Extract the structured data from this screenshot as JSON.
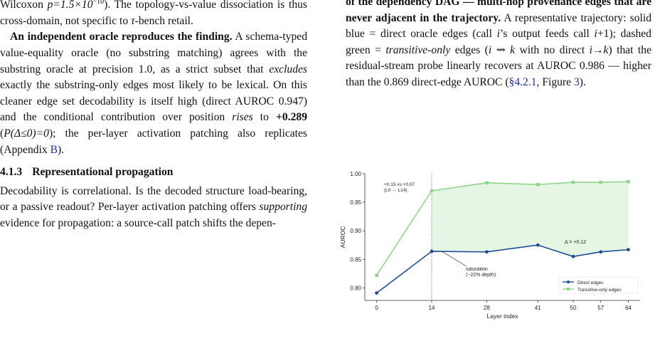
{
  "left": {
    "p0": {
      "t1": "Wilcoxon ",
      "math": "p=1.5×10",
      "exp": "−10",
      "t2": "). The topology-vs-value dissociation is thus cross-domain, not specific to ",
      "tau": "τ",
      "t3": "-bench retail."
    },
    "p1": {
      "lead": "An independent oracle reproduces the finding.",
      "t1": " A schema-typed value-equality oracle (no substring matching) agrees with the substring oracle at precision 1.0, as a strict subset that ",
      "em1": "excludes",
      "t2": " exactly the substring-only edges most likely to be lexical. On this cleaner edge set decodability is itself high (direct AUROC 0.947) and the conditional contribution over position ",
      "em2": "rises",
      "t3": " to ",
      "bold": "+0.289",
      "t4": " (",
      "math": "P(Δ≤0)=0",
      "t5": "); the per-layer activation patching also replicates (Appendix ",
      "ref": "B",
      "t6": ")."
    },
    "section": {
      "num": "4.1.3",
      "title": "Representational propagation"
    },
    "p2": {
      "t1": "Decodability is correlational. Is the decoded structure load-bearing, or a passive readout? Per-layer activation patching offers ",
      "em": "supporting",
      "t2": " evidence for propagation: a source-call patch shifts the depen-"
    }
  },
  "right": {
    "cap": {
      "b1": "of the dependency DAG — multi-hop provenance edges that are never adjacent in the trajectory.",
      "t1": " A representative trajectory: solid blue = direct oracle edges (call ",
      "i1": "i",
      "t2": "’s output feeds call ",
      "i2": "i",
      "t3": "+1); dashed green = ",
      "em": "transitive-only",
      "t4": " edges (",
      "math": "i ⇝ k",
      "t5": " with no direct ",
      "math2": "i→k",
      "t6": ") that the residual-stream probe linearly recovers at AUROC 0.986 — higher than the 0.869 direct-edge AUROC (",
      "ref1": "§4.2.1",
      "t7": ", Figure ",
      "ref2": "3",
      "t8": ")."
    }
  },
  "chart_data": {
    "type": "line",
    "x": [
      0,
      14,
      28,
      41,
      50,
      57,
      64
    ],
    "xticks": [
      "0",
      "14",
      "28",
      "41",
      "50",
      "57",
      "64"
    ],
    "xlim": [
      -3,
      67
    ],
    "ylim": [
      0.778,
      1.0
    ],
    "yticks": [
      "0.80",
      "0.85",
      "0.90",
      "0.95",
      "1.00"
    ],
    "ytick_values": [
      0.8,
      0.85,
      0.9,
      0.95,
      1.0
    ],
    "xlabel": "Layer index",
    "ylabel": "AUROC",
    "grid": false,
    "legend_position": "lower-right",
    "series": [
      {
        "name": "Direct edges",
        "color": "#1f4e96",
        "values": [
          0.791,
          0.864,
          0.863,
          0.875,
          0.855,
          0.863,
          0.867
        ]
      },
      {
        "name": "Transitive-only edges",
        "color": "#8fd68c",
        "values": [
          0.822,
          0.97,
          0.984,
          0.981,
          0.985,
          0.985,
          0.986
        ]
      }
    ],
    "fill_between": {
      "from": 14,
      "color": "#e6f6e4"
    },
    "vline_x": 14,
    "annotations": {
      "top_left": "+0.15 vs +0.07",
      "top_left_sub": "(L0 → L14)",
      "delta": "Δ = +0.12",
      "saturation": "saturation",
      "saturation_sub": "(~22% depth)"
    }
  }
}
